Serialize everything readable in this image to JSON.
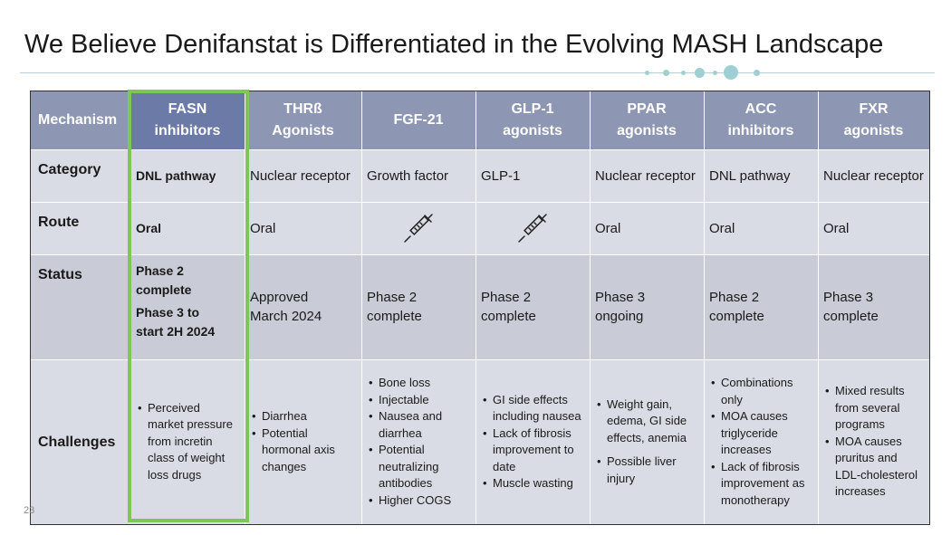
{
  "title": "We Believe Denifanstat is Differentiated in the Evolving MASH Landscape",
  "page_number": "23",
  "colors": {
    "header": "#8d97b3",
    "header_fasn": "#6b7aa6",
    "highlight": "#7dc657",
    "row_light": "#d9dce4",
    "row_dark": "#c9ccd6"
  },
  "header": {
    "mechanism": "Mechanism",
    "columns": [
      [
        "FASN",
        "inhibitors"
      ],
      [
        "THRß",
        "Agonists"
      ],
      [
        "FGF-21"
      ],
      [
        "GLP-1",
        "agonists"
      ],
      [
        "PPAR",
        "agonists"
      ],
      [
        "ACC",
        "inhibitors"
      ],
      [
        "FXR",
        "agonists"
      ]
    ]
  },
  "rows": {
    "category": {
      "label": "Category",
      "values": [
        "DNL pathway",
        "Nuclear receptor",
        "Growth factor",
        "GLP-1",
        "Nuclear receptor",
        "DNL pathway",
        "Nuclear receptor"
      ]
    },
    "route": {
      "label": "Route",
      "values": [
        "Oral",
        "Oral",
        "",
        "",
        "Oral",
        "Oral",
        "Oral"
      ],
      "icons": [
        "",
        "",
        "syringe-icon",
        "syringe-icon",
        "",
        "",
        ""
      ]
    },
    "status": {
      "label": "Status",
      "fasn": [
        "Phase 2 complete",
        "Phase 3 to start 2H 2024"
      ],
      "values": [
        "Approved March 2024",
        "Phase 2 complete",
        "Phase 2 complete",
        "Phase 3 ongoing",
        "Phase 2 complete",
        "Phase 3 complete"
      ]
    },
    "challenges": {
      "label": "Challenges",
      "fasn": [
        "Perceived market pressure from incretin class of weight loss drugs"
      ],
      "thrb": [
        "Diarrhea",
        "Potential hormonal axis changes"
      ],
      "fgf21": [
        "Bone loss",
        "Injectable",
        "Nausea and diarrhea",
        "Potential neutralizing antibodies",
        "Higher COGS"
      ],
      "glp1": [
        "GI side effects including nausea",
        "Lack of fibrosis improvement to date",
        "Muscle wasting"
      ],
      "ppar": [
        "Weight gain, edema, GI side effects, anemia",
        "Possible liver injury"
      ],
      "acc": [
        "Combinations only",
        "MOA causes triglyceride increases",
        "Lack of fibrosis improvement as monotherapy"
      ],
      "fxr": [
        "Mixed results from several programs",
        "MOA causes pruritus and LDL-cholesterol increases"
      ]
    }
  }
}
